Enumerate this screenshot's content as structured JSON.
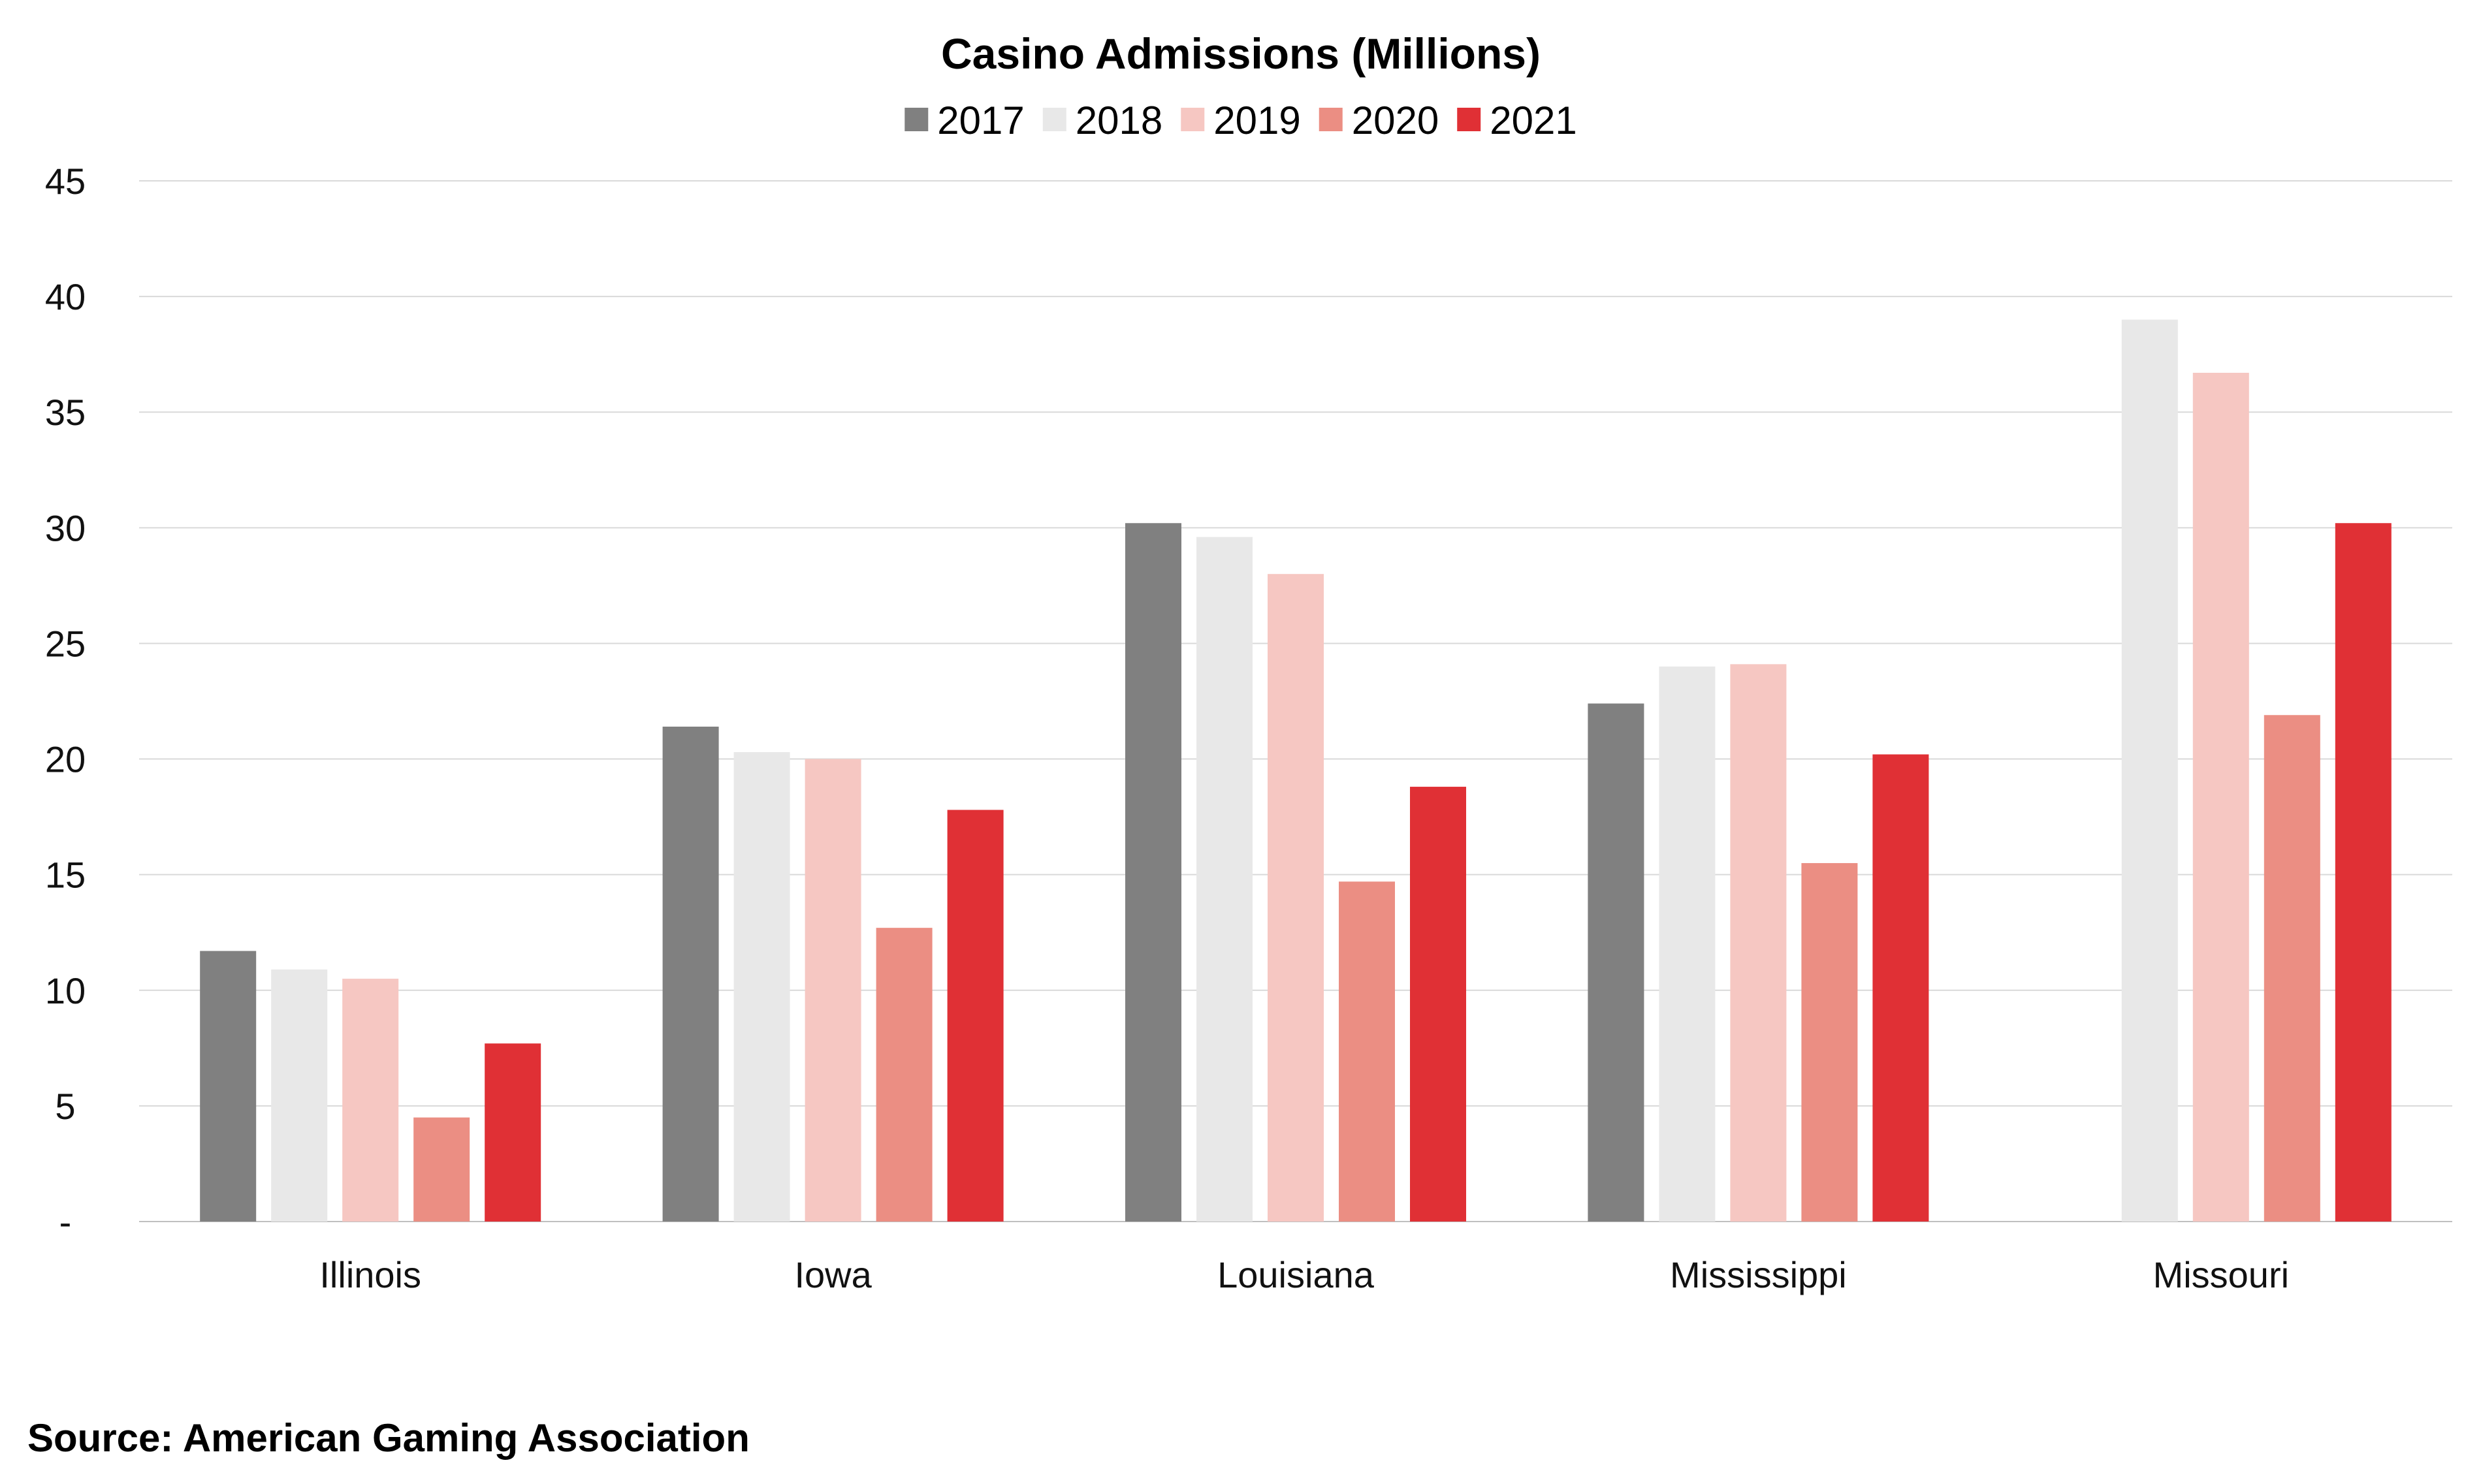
{
  "chart_data": {
    "type": "bar",
    "title": "Casino Admissions (Millions)",
    "categories": [
      "Illinois",
      "Iowa",
      "Louisiana",
      "Mississippi",
      "Missouri"
    ],
    "series": [
      {
        "name": "2017",
        "color": "#808080",
        "values": [
          11.7,
          21.4,
          30.2,
          22.4,
          null
        ]
      },
      {
        "name": "2018",
        "color": "#e8e8e8",
        "values": [
          10.9,
          20.3,
          29.6,
          24.0,
          39.0
        ]
      },
      {
        "name": "2019",
        "color": "#f6c7c2",
        "values": [
          10.5,
          20.0,
          28.0,
          24.1,
          36.7
        ]
      },
      {
        "name": "2020",
        "color": "#eb8e83",
        "values": [
          4.5,
          12.7,
          14.7,
          15.5,
          21.9
        ]
      },
      {
        "name": "2021",
        "color": "#e03035",
        "values": [
          7.7,
          17.8,
          18.8,
          20.2,
          30.2
        ]
      }
    ],
    "ylim": [
      0,
      45
    ],
    "yticks": [
      0,
      5,
      10,
      15,
      20,
      25,
      30,
      35,
      40,
      45
    ],
    "ytick_labels": [
      "-",
      "5",
      "10",
      "15",
      "20",
      "25",
      "30",
      "35",
      "40",
      "45"
    ],
    "grid": true,
    "legend_position": "top-center"
  },
  "source_note": "Source: American Gaming Association"
}
